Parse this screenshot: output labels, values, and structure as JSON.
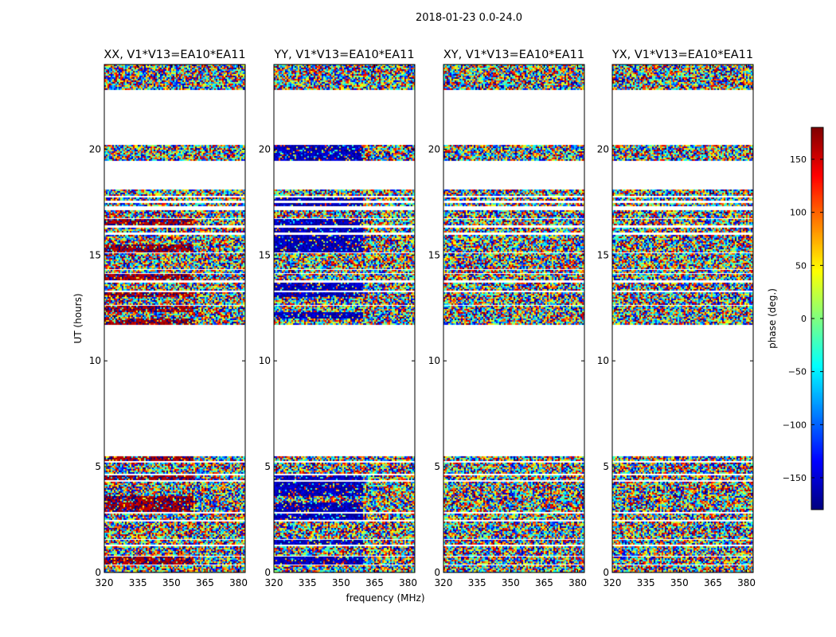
{
  "figure": {
    "suptitle": "2018-01-23 0.0-24.0",
    "xlabel": "frequency (MHz)",
    "ylabel": "UT (hours)"
  },
  "chart_data": {
    "type": "heatmap",
    "title": "2018-01-23 0.0-24.0",
    "xlabel": "frequency (MHz)",
    "ylabel": "UT (hours)",
    "xlim": [
      320,
      383
    ],
    "ylim": [
      0,
      24
    ],
    "xticks": [
      320,
      335,
      350,
      365,
      380
    ],
    "yticks": [
      0,
      5,
      10,
      15,
      20
    ],
    "panels": [
      {
        "title": "XX, V1*V13=EA10*EA11",
        "polarization": "XX",
        "dominant_phase": 170,
        "narrow_band_phase": -40
      },
      {
        "title": "YY, V1*V13=EA10*EA11",
        "polarization": "YY",
        "dominant_phase": -160,
        "narrow_band_phase": 20
      },
      {
        "title": "XY, V1*V13=EA10*EA11",
        "polarization": "XY",
        "dominant_phase": null,
        "narrow_band_phase": null
      },
      {
        "title": "YX, V1*V13=EA10*EA11",
        "polarization": "YX",
        "dominant_phase": null,
        "narrow_band_phase": null
      }
    ],
    "data_hours": [
      [
        0.0,
        0.35
      ],
      [
        0.4,
        0.75
      ],
      [
        0.8,
        1.0
      ],
      [
        1.05,
        1.25
      ],
      [
        1.3,
        1.55
      ],
      [
        1.6,
        2.4
      ],
      [
        2.5,
        2.8
      ],
      [
        2.85,
        3.3
      ],
      [
        3.35,
        3.6
      ],
      [
        3.65,
        4.3
      ],
      [
        4.35,
        4.6
      ],
      [
        4.65,
        5.2
      ],
      [
        5.25,
        5.5
      ],
      [
        11.7,
        12.0
      ],
      [
        12.05,
        12.3
      ],
      [
        12.35,
        12.6
      ],
      [
        12.65,
        13.0
      ],
      [
        13.05,
        13.25
      ],
      [
        13.3,
        13.7
      ],
      [
        13.8,
        14.1
      ],
      [
        14.15,
        14.3
      ],
      [
        14.35,
        15.1
      ],
      [
        15.15,
        15.5
      ],
      [
        15.55,
        15.95
      ],
      [
        16.05,
        16.3
      ],
      [
        16.4,
        16.7
      ],
      [
        16.75,
        17.1
      ],
      [
        17.35,
        17.45
      ],
      [
        17.55,
        17.7
      ],
      [
        17.8,
        18.1
      ],
      [
        19.5,
        20.2
      ],
      [
        22.8,
        24.0
      ]
    ],
    "colorbar": {
      "label": "phase (deg.)",
      "range": [
        -180,
        180
      ],
      "ticks": [
        -150,
        -100,
        -50,
        0,
        50,
        100,
        150
      ],
      "colormap": "jet"
    }
  }
}
